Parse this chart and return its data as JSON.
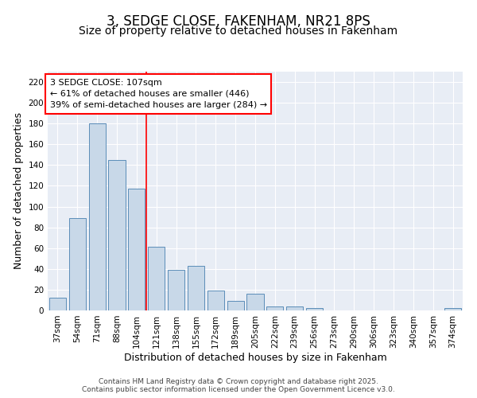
{
  "title": "3, SEDGE CLOSE, FAKENHAM, NR21 8PS",
  "subtitle": "Size of property relative to detached houses in Fakenham",
  "xlabel": "Distribution of detached houses by size in Fakenham",
  "ylabel": "Number of detached properties",
  "categories": [
    "37sqm",
    "54sqm",
    "71sqm",
    "88sqm",
    "104sqm",
    "121sqm",
    "138sqm",
    "155sqm",
    "172sqm",
    "189sqm",
    "205sqm",
    "222sqm",
    "239sqm",
    "256sqm",
    "273sqm",
    "290sqm",
    "306sqm",
    "323sqm",
    "340sqm",
    "357sqm",
    "374sqm"
  ],
  "values": [
    12,
    89,
    180,
    145,
    117,
    61,
    39,
    43,
    19,
    9,
    16,
    4,
    4,
    2,
    0,
    0,
    0,
    0,
    0,
    0,
    2
  ],
  "bar_color": "#c8d8e8",
  "bar_edge_color": "#5b8db8",
  "background_color": "#e8edf5",
  "red_line_x": 4.5,
  "annotation_text": "3 SEDGE CLOSE: 107sqm\n← 61% of detached houses are smaller (446)\n39% of semi-detached houses are larger (284) →",
  "annotation_box_color": "white",
  "annotation_box_edge_color": "red",
  "ylim": [
    0,
    230
  ],
  "yticks": [
    0,
    20,
    40,
    60,
    80,
    100,
    120,
    140,
    160,
    180,
    200,
    220
  ],
  "footer": "Contains HM Land Registry data © Crown copyright and database right 2025.\nContains public sector information licensed under the Open Government Licence v3.0.",
  "title_fontsize": 12,
  "subtitle_fontsize": 10,
  "xlabel_fontsize": 9,
  "ylabel_fontsize": 9,
  "tick_fontsize": 7.5,
  "annotation_fontsize": 8,
  "footer_fontsize": 6.5
}
